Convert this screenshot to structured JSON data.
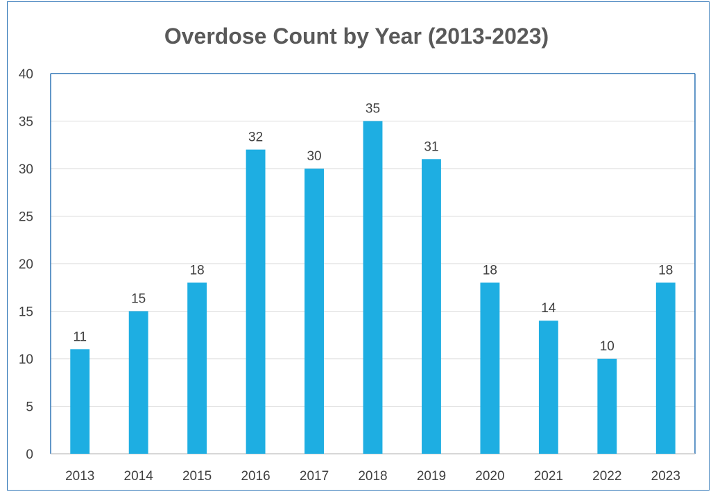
{
  "chart_data": {
    "type": "bar",
    "title": "Overdose Count by Year (2013-2023)",
    "xlabel": "",
    "ylabel": "",
    "categories": [
      "2013",
      "2014",
      "2015",
      "2016",
      "2017",
      "2018",
      "2019",
      "2020",
      "2021",
      "2022",
      "2023"
    ],
    "values": [
      11,
      15,
      18,
      32,
      30,
      35,
      31,
      18,
      14,
      10,
      18
    ],
    "ylim": [
      0,
      40
    ],
    "yticks": [
      0,
      5,
      10,
      15,
      20,
      25,
      30,
      35,
      40
    ],
    "grid": true,
    "data_labels": true,
    "legend": "none",
    "bar_color": "#1eaee2",
    "frame_color": "#2e75b6",
    "gridline_color": "#d9d9d9"
  }
}
